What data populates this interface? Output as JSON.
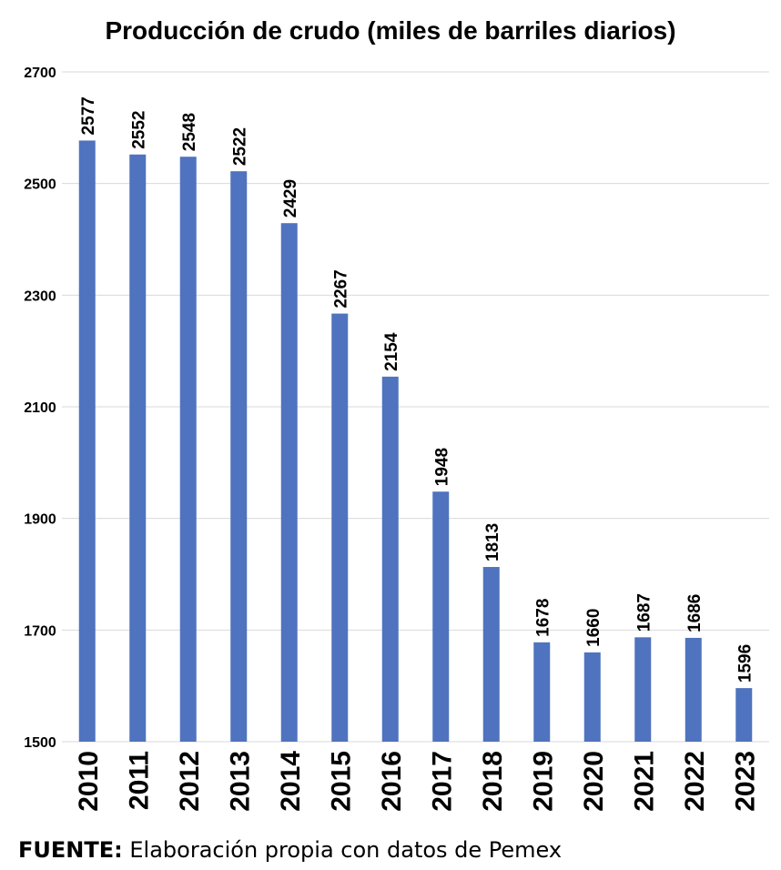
{
  "chart_data": {
    "type": "bar",
    "title": "Producción de crudo (miles de barriles diarios)",
    "categories": [
      "2010",
      "2011",
      "2012",
      "2013",
      "2014",
      "2015",
      "2016",
      "2017",
      "2018",
      "2019",
      "2020",
      "2021",
      "2022",
      "2023"
    ],
    "values": [
      2577,
      2552,
      2548,
      2522,
      2429,
      2267,
      2154,
      1948,
      1813,
      1678,
      1660,
      1687,
      1686,
      1596
    ],
    "ylim": [
      1500,
      2700
    ],
    "yticks": [
      1500,
      1700,
      1900,
      2100,
      2300,
      2500,
      2700
    ],
    "grid": true,
    "bar_color": "#4f73be",
    "grid_color": "#d9d9d9"
  },
  "source": {
    "label": "FUENTE:",
    "text": " Elaboración propia con datos de Pemex"
  }
}
